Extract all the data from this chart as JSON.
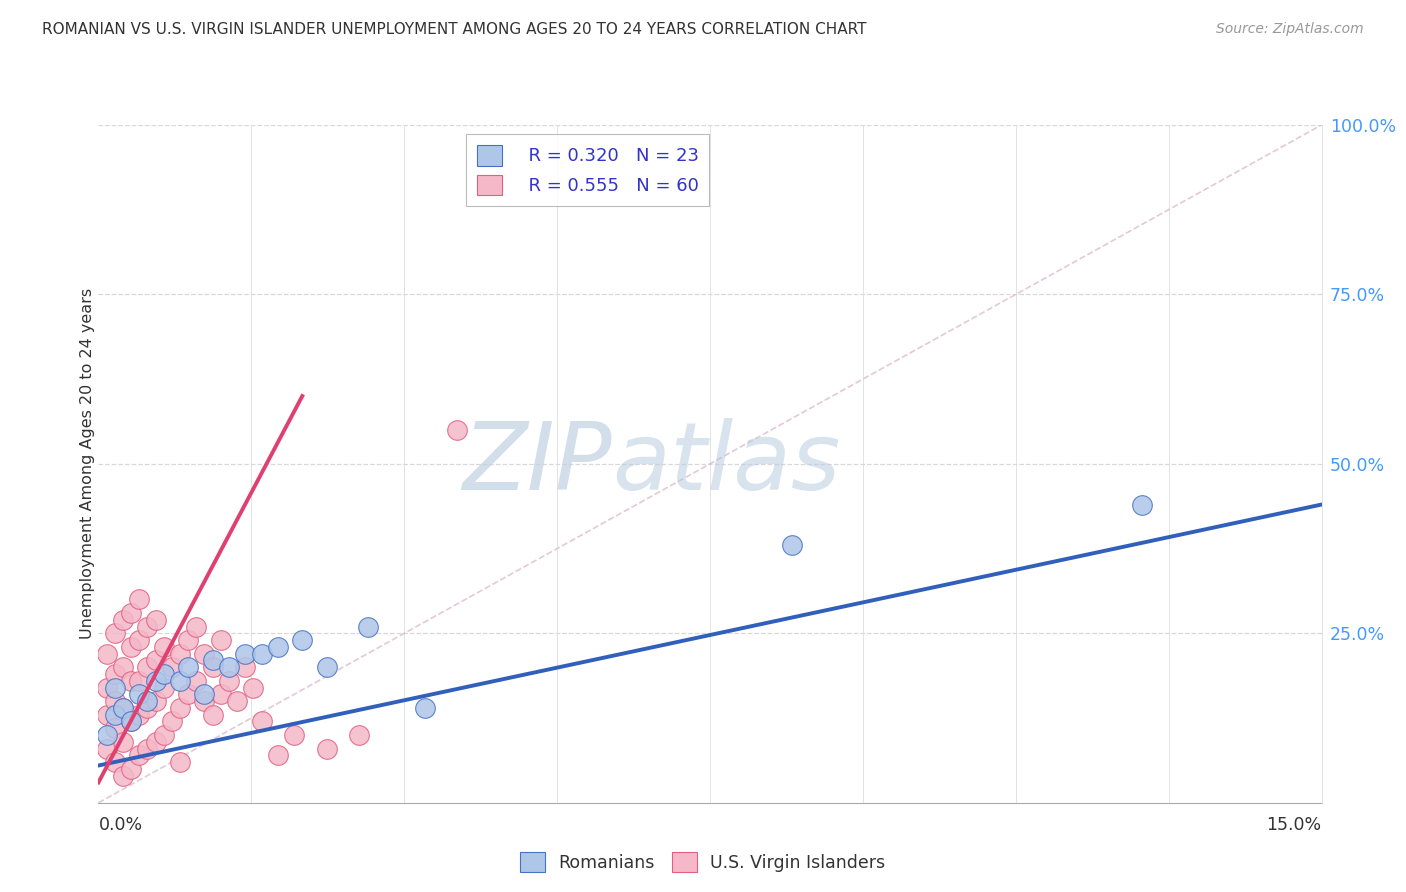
{
  "title": "ROMANIAN VS U.S. VIRGIN ISLANDER UNEMPLOYMENT AMONG AGES 20 TO 24 YEARS CORRELATION CHART",
  "source": "Source: ZipAtlas.com",
  "ylabel": "Unemployment Among Ages 20 to 24 years",
  "xmin": 0.0,
  "xmax": 0.15,
  "ymin": 0.0,
  "ymax": 1.0,
  "legend_r_romanian": "R = 0.320",
  "legend_n_romanian": "N = 23",
  "legend_r_usvi": "R = 0.555",
  "legend_n_usvi": "N = 60",
  "romanian_fill": "#aec6e8",
  "romanian_edge": "#4472c4",
  "usvi_fill": "#f4b8c8",
  "usvi_edge": "#e06080",
  "romanian_line_color": "#3060bb",
  "usvi_line_color": "#e04070",
  "ref_line_color": "#c8c8c8",
  "watermark_color": "#c8d8ea",
  "ytick_color": "#4499ff",
  "grid_color": "#d8d8d8",
  "title_color": "#333333",
  "source_color": "#999999",
  "ylabel_color": "#333333",
  "legend_text_color": "#3333cc",
  "bottom_label_color": "#333333",
  "rom_trend_x0": 0.0,
  "rom_trend_y0": 0.055,
  "rom_trend_x1": 0.15,
  "rom_trend_y1": 0.44,
  "usvi_trend_x0": 0.0,
  "usvi_trend_y0": 0.03,
  "usvi_trend_x1": 0.025,
  "usvi_trend_y1": 0.6,
  "rom_scatter_x": [
    0.001,
    0.002,
    0.002,
    0.003,
    0.004,
    0.005,
    0.006,
    0.007,
    0.008,
    0.01,
    0.011,
    0.013,
    0.014,
    0.016,
    0.018,
    0.02,
    0.022,
    0.025,
    0.028,
    0.033,
    0.04,
    0.085,
    0.128
  ],
  "rom_scatter_y": [
    0.1,
    0.13,
    0.17,
    0.14,
    0.12,
    0.16,
    0.15,
    0.18,
    0.19,
    0.18,
    0.2,
    0.16,
    0.21,
    0.2,
    0.22,
    0.22,
    0.23,
    0.24,
    0.2,
    0.26,
    0.14,
    0.38,
    0.44
  ],
  "usvi_scatter_x": [
    0.001,
    0.001,
    0.001,
    0.001,
    0.002,
    0.002,
    0.002,
    0.002,
    0.002,
    0.003,
    0.003,
    0.003,
    0.003,
    0.003,
    0.004,
    0.004,
    0.004,
    0.004,
    0.004,
    0.005,
    0.005,
    0.005,
    0.005,
    0.005,
    0.006,
    0.006,
    0.006,
    0.006,
    0.007,
    0.007,
    0.007,
    0.007,
    0.008,
    0.008,
    0.008,
    0.009,
    0.009,
    0.01,
    0.01,
    0.01,
    0.011,
    0.011,
    0.012,
    0.012,
    0.013,
    0.013,
    0.014,
    0.014,
    0.015,
    0.015,
    0.016,
    0.017,
    0.018,
    0.019,
    0.02,
    0.022,
    0.024,
    0.028,
    0.032,
    0.044
  ],
  "usvi_scatter_y": [
    0.08,
    0.13,
    0.17,
    0.22,
    0.06,
    0.11,
    0.15,
    0.19,
    0.25,
    0.04,
    0.09,
    0.14,
    0.2,
    0.27,
    0.05,
    0.12,
    0.18,
    0.23,
    0.28,
    0.07,
    0.13,
    0.18,
    0.24,
    0.3,
    0.08,
    0.14,
    0.2,
    0.26,
    0.09,
    0.15,
    0.21,
    0.27,
    0.1,
    0.17,
    0.23,
    0.12,
    0.2,
    0.06,
    0.14,
    0.22,
    0.16,
    0.24,
    0.18,
    0.26,
    0.15,
    0.22,
    0.13,
    0.2,
    0.16,
    0.24,
    0.18,
    0.15,
    0.2,
    0.17,
    0.12,
    0.07,
    0.1,
    0.08,
    0.1,
    0.55
  ]
}
